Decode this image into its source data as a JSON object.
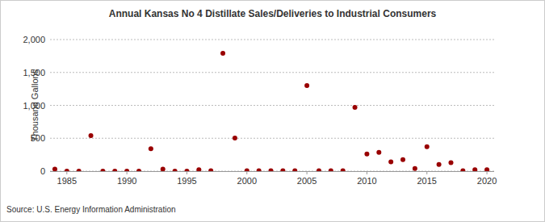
{
  "chart_data": {
    "type": "scatter",
    "title": "Annual Kansas No 4 Distillate Sales/Deliveries to Industrial Consumers",
    "y_label": "Thousand Gallons",
    "source": "Source: U.S. Energy Information Administration",
    "x": [
      1984,
      1985,
      1986,
      1987,
      1988,
      1989,
      1990,
      1991,
      1992,
      1993,
      1994,
      1995,
      1996,
      1997,
      1998,
      1999,
      2000,
      2001,
      2002,
      2003,
      2004,
      2005,
      2006,
      2007,
      2008,
      2009,
      2010,
      2011,
      2012,
      2013,
      2014,
      2015,
      2016,
      2017,
      2018,
      2019,
      2020
    ],
    "values": [
      30,
      0,
      0,
      539,
      0,
      0,
      0,
      0,
      341,
      30,
      0,
      0,
      20,
      5,
      1790,
      502,
      5,
      5,
      5,
      5,
      5,
      1300,
      5,
      5,
      5,
      970,
      260,
      285,
      140,
      175,
      40,
      370,
      100,
      130,
      5,
      20,
      20
    ],
    "color": "#990000",
    "marker": "circle",
    "xlim": [
      1983.6,
      2020.6
    ],
    "xticks": [
      1985,
      1990,
      1995,
      2000,
      2005,
      2010,
      2015,
      2020
    ],
    "ylim": [
      0,
      2000
    ],
    "yticks": [
      0,
      500,
      {
        "value": 1000,
        "label": "1,000"
      },
      {
        "value": 1500,
        "label": "1,500"
      },
      {
        "value": 2000,
        "label": "2,000"
      }
    ],
    "grid": true
  }
}
